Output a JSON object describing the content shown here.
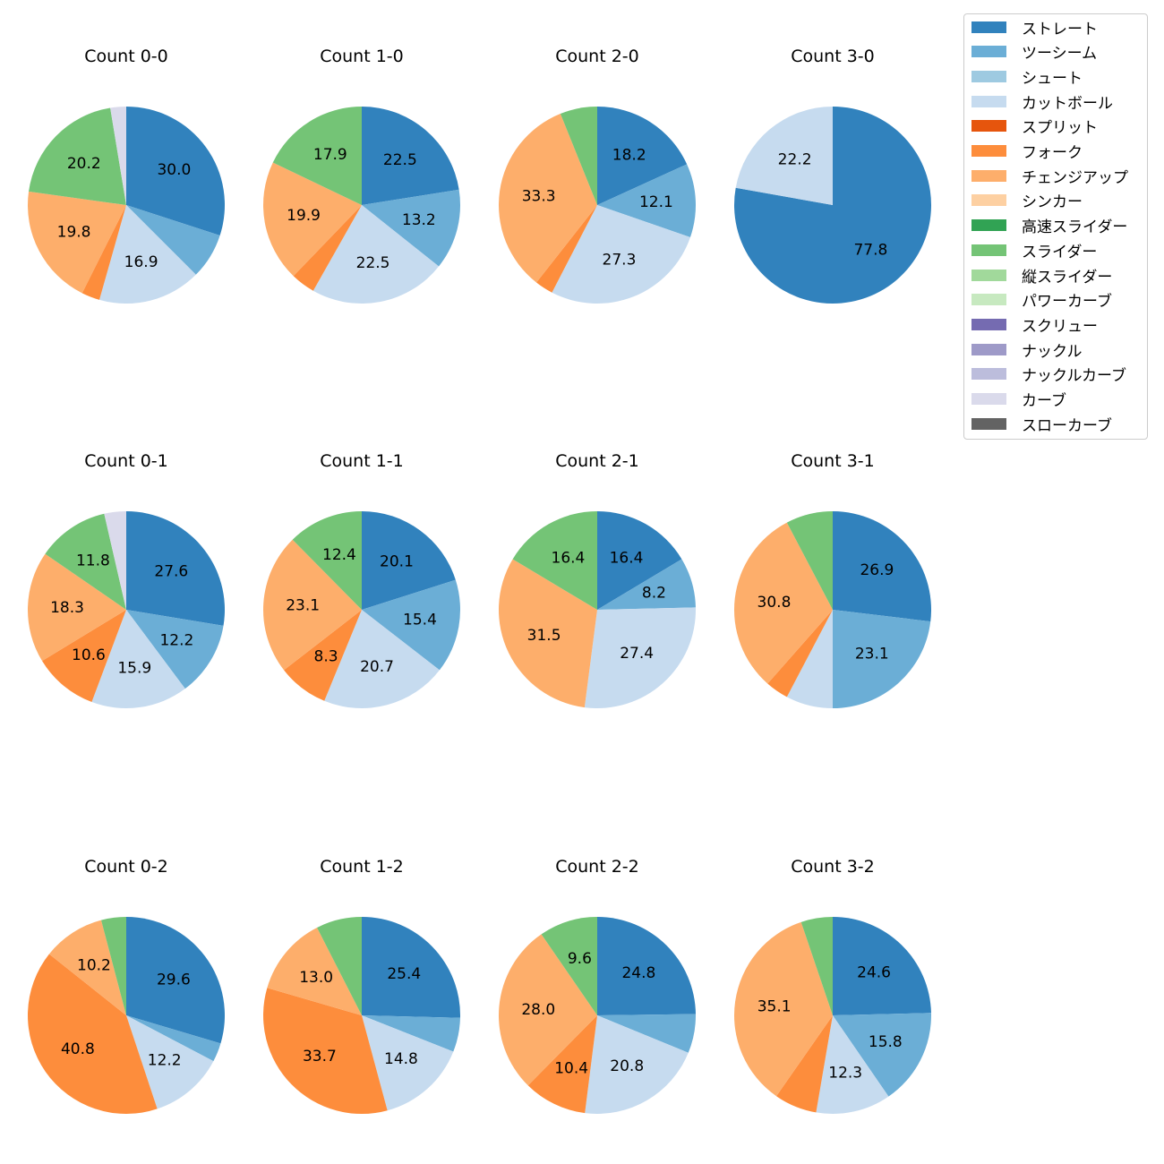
{
  "chart_data": {
    "type": "pie",
    "legend_position": "top-right",
    "colors": {
      "ストレート": "#3182bd",
      "ツーシーム": "#6baed6",
      "シュート": "#9ecae1",
      "カットボール": "#c6dbef",
      "スプリット": "#e6550d",
      "フォーク": "#fd8d3c",
      "チェンジアップ": "#fdae6b",
      "シンカー": "#fdd0a2",
      "高速スライダー": "#31a354",
      "スライダー": "#74c476",
      "縦スライダー": "#a1d99b",
      "パワーカーブ": "#c7e9c0",
      "スクリュー": "#756bb1",
      "ナックル": "#9e9ac8",
      "ナックルカーブ": "#bcbddc",
      "カーブ": "#dadaeb",
      "スローカーブ": "#636363"
    },
    "legend": [
      "ストレート",
      "ツーシーム",
      "シュート",
      "カットボール",
      "スプリット",
      "フォーク",
      "チェンジアップ",
      "シンカー",
      "高速スライダー",
      "スライダー",
      "縦スライダー",
      "パワーカーブ",
      "スクリュー",
      "ナックル",
      "ナックルカーブ",
      "カーブ",
      "スローカーブ"
    ],
    "pies": [
      {
        "title": "Count 0-0",
        "slices": [
          {
            "category": "ストレート",
            "value": 30.0,
            "label": "30.0"
          },
          {
            "category": "ツーシーム",
            "value": 7.5,
            "label": ""
          },
          {
            "category": "カットボール",
            "value": 16.9,
            "label": "16.9"
          },
          {
            "category": "フォーク",
            "value": 3.0,
            "label": ""
          },
          {
            "category": "チェンジアップ",
            "value": 19.8,
            "label": "19.8"
          },
          {
            "category": "スライダー",
            "value": 20.2,
            "label": "20.2"
          },
          {
            "category": "カーブ",
            "value": 2.6,
            "label": ""
          }
        ]
      },
      {
        "title": "Count 1-0",
        "slices": [
          {
            "category": "ストレート",
            "value": 22.5,
            "label": "22.5"
          },
          {
            "category": "ツーシーム",
            "value": 13.2,
            "label": "13.2"
          },
          {
            "category": "カットボール",
            "value": 22.5,
            "label": "22.5"
          },
          {
            "category": "フォーク",
            "value": 4.0,
            "label": ""
          },
          {
            "category": "チェンジアップ",
            "value": 19.9,
            "label": "19.9"
          },
          {
            "category": "スライダー",
            "value": 17.9,
            "label": "17.9"
          }
        ]
      },
      {
        "title": "Count 2-0",
        "slices": [
          {
            "category": "ストレート",
            "value": 18.2,
            "label": "18.2"
          },
          {
            "category": "ツーシーム",
            "value": 12.1,
            "label": "12.1"
          },
          {
            "category": "カットボール",
            "value": 27.3,
            "label": "27.3"
          },
          {
            "category": "フォーク",
            "value": 3.0,
            "label": ""
          },
          {
            "category": "チェンジアップ",
            "value": 33.3,
            "label": "33.3"
          },
          {
            "category": "スライダー",
            "value": 6.1,
            "label": ""
          }
        ]
      },
      {
        "title": "Count 3-0",
        "slices": [
          {
            "category": "ストレート",
            "value": 77.8,
            "label": "77.8"
          },
          {
            "category": "カットボール",
            "value": 22.2,
            "label": "22.2"
          }
        ]
      },
      {
        "title": "Count 0-1",
        "slices": [
          {
            "category": "ストレート",
            "value": 27.6,
            "label": "27.6"
          },
          {
            "category": "ツーシーム",
            "value": 12.2,
            "label": "12.2"
          },
          {
            "category": "カットボール",
            "value": 15.9,
            "label": "15.9"
          },
          {
            "category": "フォーク",
            "value": 10.6,
            "label": "10.6"
          },
          {
            "category": "チェンジアップ",
            "value": 18.3,
            "label": "18.3"
          },
          {
            "category": "スライダー",
            "value": 11.8,
            "label": "11.8"
          },
          {
            "category": "カーブ",
            "value": 3.6,
            "label": ""
          }
        ]
      },
      {
        "title": "Count 1-1",
        "slices": [
          {
            "category": "ストレート",
            "value": 20.1,
            "label": "20.1"
          },
          {
            "category": "ツーシーム",
            "value": 15.4,
            "label": "15.4"
          },
          {
            "category": "カットボール",
            "value": 20.7,
            "label": "20.7"
          },
          {
            "category": "フォーク",
            "value": 8.3,
            "label": "8.3"
          },
          {
            "category": "チェンジアップ",
            "value": 23.1,
            "label": "23.1"
          },
          {
            "category": "スライダー",
            "value": 12.4,
            "label": "12.4"
          }
        ]
      },
      {
        "title": "Count 2-1",
        "slices": [
          {
            "category": "ストレート",
            "value": 16.4,
            "label": "16.4"
          },
          {
            "category": "ツーシーム",
            "value": 8.2,
            "label": "8.2"
          },
          {
            "category": "カットボール",
            "value": 27.4,
            "label": "27.4"
          },
          {
            "category": "チェンジアップ",
            "value": 31.5,
            "label": "31.5"
          },
          {
            "category": "スライダー",
            "value": 16.4,
            "label": "16.4"
          }
        ]
      },
      {
        "title": "Count 3-1",
        "slices": [
          {
            "category": "ストレート",
            "value": 26.9,
            "label": "26.9"
          },
          {
            "category": "ツーシーム",
            "value": 23.1,
            "label": "23.1"
          },
          {
            "category": "カットボール",
            "value": 7.7,
            "label": ""
          },
          {
            "category": "フォーク",
            "value": 3.8,
            "label": ""
          },
          {
            "category": "チェンジアップ",
            "value": 30.8,
            "label": "30.8"
          },
          {
            "category": "スライダー",
            "value": 7.7,
            "label": ""
          }
        ]
      },
      {
        "title": "Count 0-2",
        "slices": [
          {
            "category": "ストレート",
            "value": 29.6,
            "label": "29.6"
          },
          {
            "category": "ツーシーム",
            "value": 3.1,
            "label": ""
          },
          {
            "category": "カットボール",
            "value": 12.2,
            "label": "12.2"
          },
          {
            "category": "フォーク",
            "value": 40.8,
            "label": "40.8"
          },
          {
            "category": "チェンジアップ",
            "value": 10.2,
            "label": "10.2"
          },
          {
            "category": "スライダー",
            "value": 4.1,
            "label": ""
          }
        ]
      },
      {
        "title": "Count 1-2",
        "slices": [
          {
            "category": "ストレート",
            "value": 25.4,
            "label": "25.4"
          },
          {
            "category": "ツーシーム",
            "value": 5.6,
            "label": ""
          },
          {
            "category": "カットボール",
            "value": 14.8,
            "label": "14.8"
          },
          {
            "category": "フォーク",
            "value": 33.7,
            "label": "33.7"
          },
          {
            "category": "チェンジアップ",
            "value": 13.0,
            "label": "13.0"
          },
          {
            "category": "スライダー",
            "value": 7.5,
            "label": ""
          }
        ]
      },
      {
        "title": "Count 2-2",
        "slices": [
          {
            "category": "ストレート",
            "value": 24.8,
            "label": "24.8"
          },
          {
            "category": "ツーシーム",
            "value": 6.4,
            "label": ""
          },
          {
            "category": "カットボール",
            "value": 20.8,
            "label": "20.8"
          },
          {
            "category": "フォーク",
            "value": 10.4,
            "label": "10.4"
          },
          {
            "category": "チェンジアップ",
            "value": 28.0,
            "label": "28.0"
          },
          {
            "category": "スライダー",
            "value": 9.6,
            "label": "9.6"
          }
        ]
      },
      {
        "title": "Count 3-2",
        "slices": [
          {
            "category": "ストレート",
            "value": 24.6,
            "label": "24.6"
          },
          {
            "category": "ツーシーム",
            "value": 15.8,
            "label": "15.8"
          },
          {
            "category": "カットボール",
            "value": 12.3,
            "label": "12.3"
          },
          {
            "category": "フォーク",
            "value": 7.0,
            "label": ""
          },
          {
            "category": "チェンジアップ",
            "value": 35.1,
            "label": "35.1"
          },
          {
            "category": "スライダー",
            "value": 5.2,
            "label": ""
          }
        ]
      }
    ]
  }
}
